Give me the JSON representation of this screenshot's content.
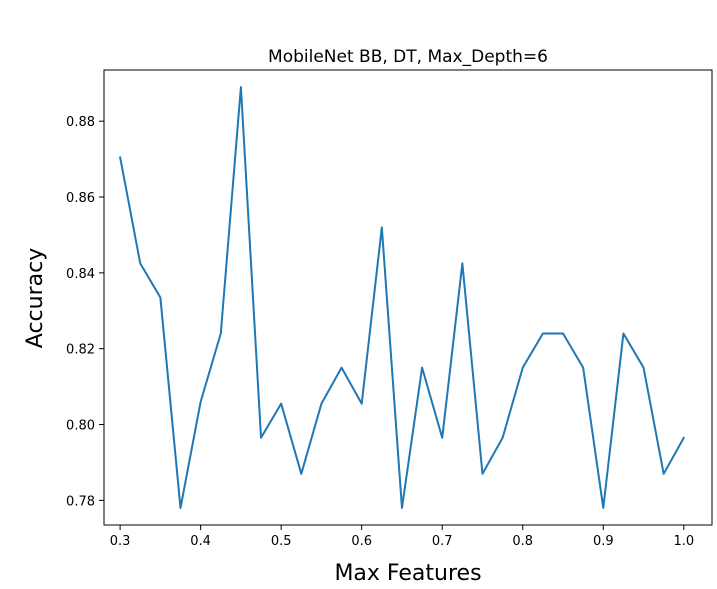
{
  "chart_data": {
    "type": "line",
    "title": "MobileNet BB, DT, Max_Depth=6",
    "xlabel": "Max Features",
    "ylabel": "Accuracy",
    "xlim": [
      0.28,
      1.035
    ],
    "ylim": [
      0.7735,
      0.8935
    ],
    "grid": false,
    "line_color": "#1f77b4",
    "x_ticks": [
      {
        "value": 0.3,
        "label": "0.3"
      },
      {
        "value": 0.4,
        "label": "0.4"
      },
      {
        "value": 0.5,
        "label": "0.5"
      },
      {
        "value": 0.6,
        "label": "0.6"
      },
      {
        "value": 0.7,
        "label": "0.7"
      },
      {
        "value": 0.8,
        "label": "0.8"
      },
      {
        "value": 0.9,
        "label": "0.9"
      },
      {
        "value": 1.0,
        "label": "1.0"
      }
    ],
    "y_ticks": [
      {
        "value": 0.78,
        "label": "0.78"
      },
      {
        "value": 0.8,
        "label": "0.80"
      },
      {
        "value": 0.82,
        "label": "0.82"
      },
      {
        "value": 0.84,
        "label": "0.84"
      },
      {
        "value": 0.86,
        "label": "0.86"
      },
      {
        "value": 0.88,
        "label": "0.88"
      }
    ],
    "series": [
      {
        "x": [
          0.3,
          0.325,
          0.35,
          0.375,
          0.4,
          0.425,
          0.45,
          0.475,
          0.5,
          0.525,
          0.55,
          0.575,
          0.6,
          0.625,
          0.65,
          0.675,
          0.7,
          0.725,
          0.75,
          0.775,
          0.8,
          0.825,
          0.85,
          0.875,
          0.9,
          0.925,
          0.95,
          0.975,
          1.0
        ],
        "y": [
          0.8705,
          0.8425,
          0.8335,
          0.778,
          0.806,
          0.824,
          0.889,
          0.7965,
          0.8055,
          0.787,
          0.8055,
          0.815,
          0.8055,
          0.852,
          0.778,
          0.815,
          0.7965,
          0.8425,
          0.787,
          0.7965,
          0.815,
          0.824,
          0.824,
          0.815,
          0.778,
          0.824,
          0.815,
          0.787,
          0.7965
        ]
      }
    ]
  }
}
